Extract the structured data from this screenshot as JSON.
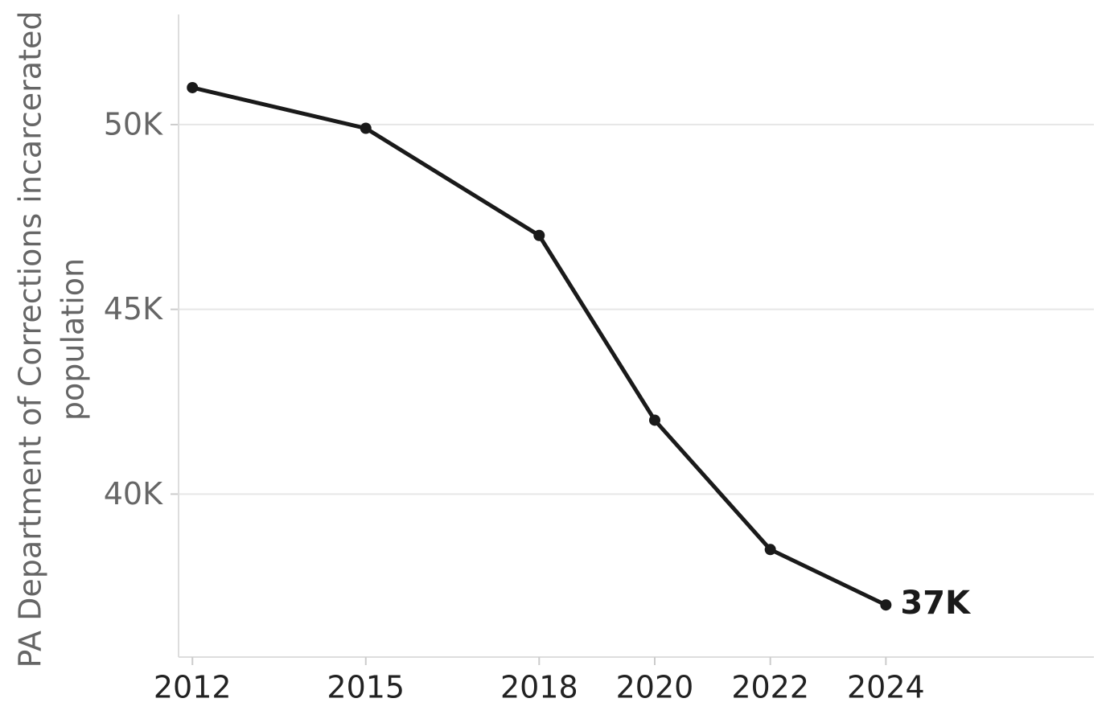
{
  "chart_data": {
    "type": "line",
    "ylabel": [
      "PA Department of Corrections incarcerated",
      "population"
    ],
    "x": [
      2012,
      2015,
      2018,
      2020,
      2022,
      2024
    ],
    "series": [
      {
        "color": "#1a1a1a",
        "values": [
          51000,
          49900,
          47000,
          42000,
          38500,
          37000
        ],
        "value_labels": [
          null,
          null,
          null,
          null,
          null,
          "37K"
        ]
      }
    ],
    "xlim": [
      2011.76,
      2027.6
    ],
    "xticks": [
      2012,
      2015,
      2018,
      2020,
      2022,
      2024
    ],
    "ylim": [
      35590,
      52980
    ],
    "yticks": [
      {
        "value": 40000,
        "label": "40K"
      },
      {
        "value": 45000,
        "label": "45K"
      },
      {
        "value": 50000,
        "label": "50K"
      }
    ],
    "grid": true
  }
}
